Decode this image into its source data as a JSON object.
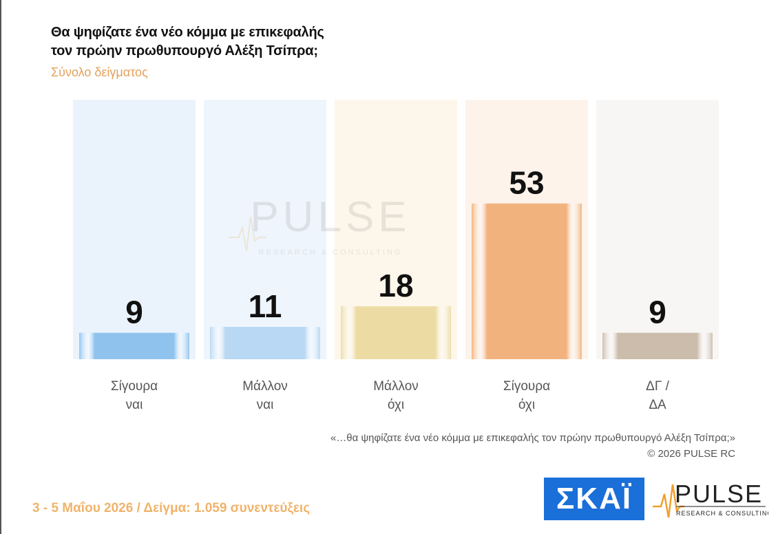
{
  "header": {
    "title_line1": "Θα ψηφίζατε ένα νέο κόμμα με επικεφαλής",
    "title_line2": "τον πρώην πρωθυπουργό Αλέξη Τσίπρα;",
    "subtitle": "Σύνολο δείγματος"
  },
  "chart_data": {
    "type": "bar",
    "categories": [
      [
        "Σίγουρα",
        "ναι"
      ],
      [
        "Μάλλον",
        "ναι"
      ],
      [
        "Μάλλον",
        "όχι"
      ],
      [
        "Σίγουρα",
        "όχι"
      ],
      [
        "ΔΓ /",
        "ΔΑ"
      ]
    ],
    "values": [
      9,
      11,
      18,
      53,
      9
    ],
    "colors": [
      "#8fc3ee",
      "#b8d8f3",
      "#ecdca4",
      "#f2b27e",
      "#cbbcab"
    ],
    "background_colors": [
      "#eaf3fc",
      "#eef5fc",
      "#fdf6ea",
      "#fdf3ea",
      "#f8f6f4"
    ],
    "ylim": [
      0,
      100
    ]
  },
  "watermark": {
    "brand": "PULSE",
    "tagline": "RESEARCH & CONSULTING"
  },
  "notes": {
    "question": "«…θα ψηφίζατε ένα νέο κόμμα με επικεφαλής τον πρώην πρωθυπουργό Αλέξη Τσίπρα;»",
    "copyright": "©  2026  PULSE RC"
  },
  "footer": {
    "text": "3 - 5  Μαΐου 2026  /  Δείγμα:  1.059 συνεντεύξεις"
  },
  "logos": {
    "skai": "ΣΚΑΪ",
    "pulse": "PULSE",
    "pulse_tagline": "RESEARCH & CONSULTING",
    "skai_color": "#1a6fd8",
    "pulse_accent": "#f0a030"
  }
}
